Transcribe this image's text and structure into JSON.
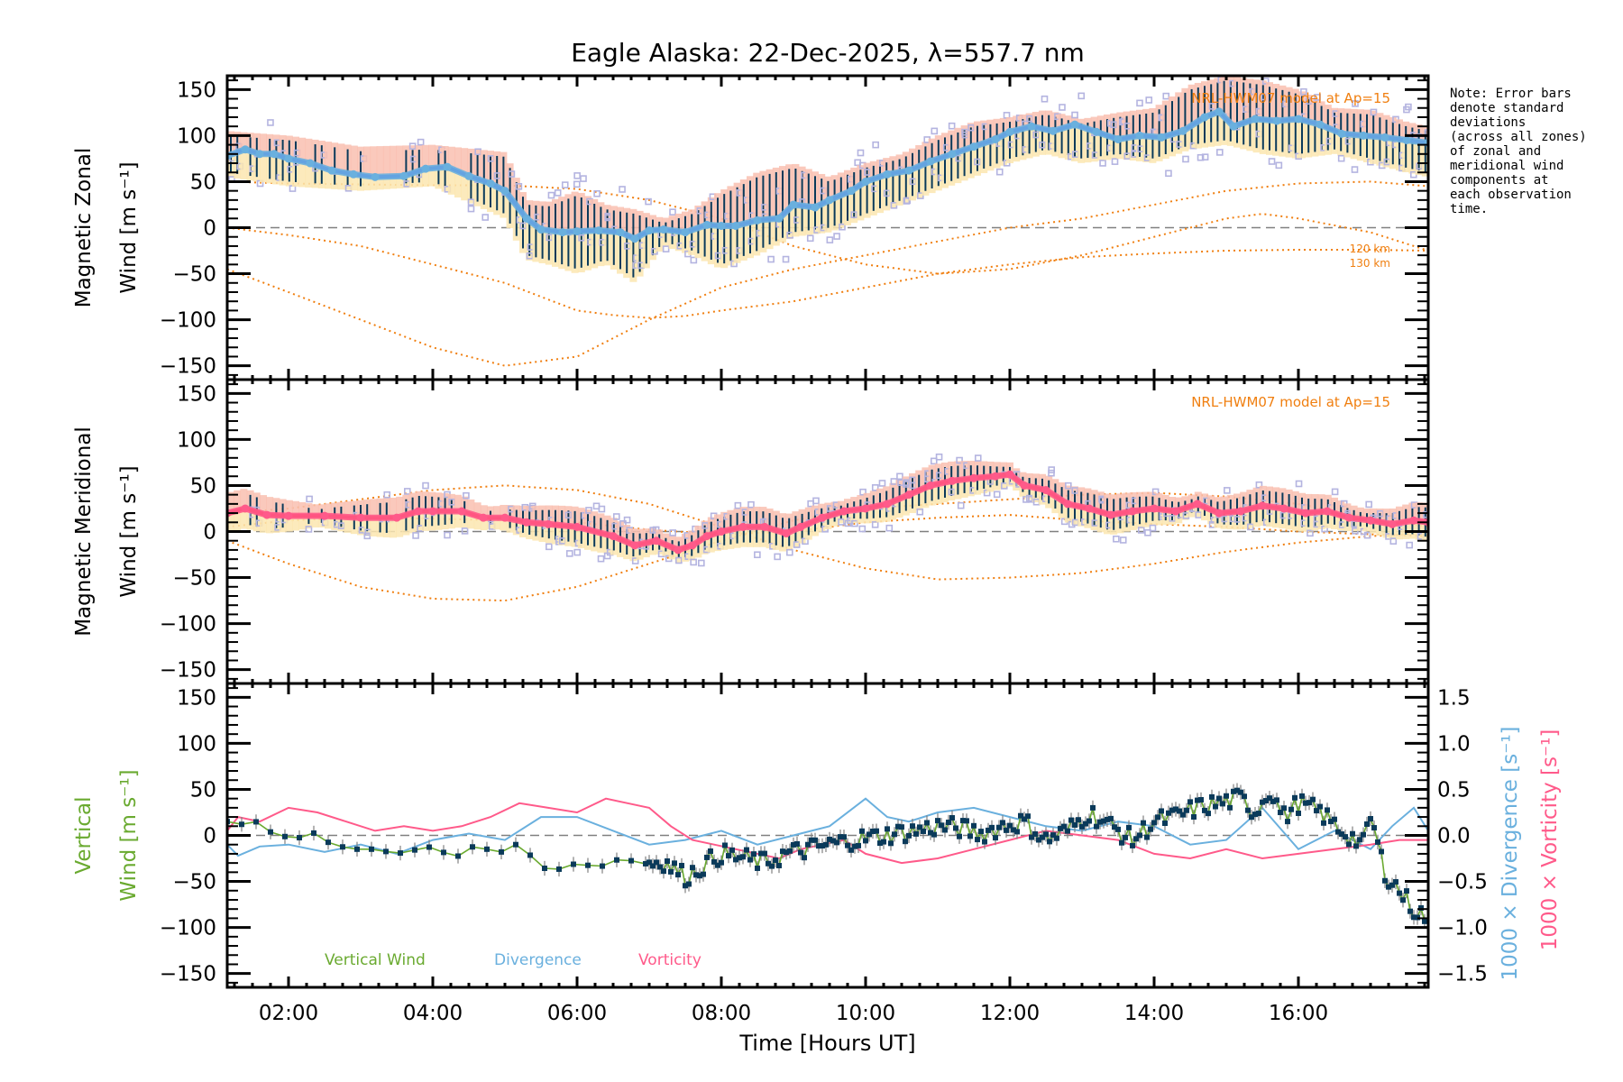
{
  "title": "Eagle Alaska: 22-Dec-2025, λ=557.7 nm",
  "note": "Note: Error bars\ndenote standard\ndeviations\n(across all zones)\nof zonal and\nmeridional wind\ncomponents at\neach observation\ntime.",
  "xlabel": "Time [Hours UT]",
  "colors": {
    "zonal_line": "#6ab0de",
    "zonal_line_dark": "#2a2aff",
    "meridional_line": "#ff5a8a",
    "meridional_line_dark": "#ff2a3a",
    "errorbar": "#0a3a5a",
    "hwm": "#f07f10",
    "scatter": "#b4b4e0",
    "band_pink": "#f9c0b0",
    "band_yellow": "#fbe6b0",
    "vertical": "#6aaa30",
    "divergence": "#6ab0de",
    "vorticity": "#ff5a8a",
    "zero_line": "#808080"
  },
  "chart_data": [
    {
      "type": "line",
      "panel": "zonal",
      "ylabel_line1": "Magnetic Zonal",
      "ylabel_line2": "Wind [m s⁻¹]",
      "xlim": [
        1.15,
        17.8
      ],
      "ylim": [
        -165,
        165
      ],
      "yticks": [
        150,
        100,
        50,
        0,
        -50,
        -100,
        -150
      ],
      "ytick_labels": [
        "150",
        "100",
        "50",
        "0",
        "−50",
        "−100",
        "−150"
      ],
      "model_label": "NRL-HWM07 model at Ap=15",
      "model_altitude_labels": [
        "120 km",
        "130 km"
      ],
      "series": [
        {
          "name": "Observed zonal wind",
          "x": [
            1.15,
            1.4,
            1.6,
            1.8,
            2.0,
            2.3,
            2.6,
            2.9,
            3.2,
            3.6,
            3.9,
            4.2,
            4.5,
            4.8,
            5.0,
            5.3,
            5.5,
            5.8,
            6.0,
            6.3,
            6.6,
            6.8,
            7.0,
            7.2,
            7.5,
            7.8,
            8.0,
            8.2,
            8.5,
            8.8,
            9.0,
            9.3,
            9.5,
            9.8,
            10.0,
            10.3,
            10.6,
            10.9,
            11.2,
            11.5,
            11.8,
            12.0,
            12.3,
            12.6,
            12.9,
            13.2,
            13.5,
            13.8,
            14.1,
            14.4,
            14.7,
            14.9,
            15.1,
            15.4,
            15.7,
            16.0,
            16.3,
            16.6,
            16.9,
            17.2,
            17.5,
            17.8
          ],
          "y": [
            78,
            85,
            80,
            80,
            75,
            70,
            62,
            58,
            55,
            56,
            64,
            66,
            56,
            48,
            40,
            10,
            -2,
            -5,
            -4,
            -3,
            -5,
            -12,
            -3,
            -2,
            -5,
            3,
            2,
            2,
            8,
            10,
            25,
            22,
            30,
            40,
            50,
            58,
            62,
            72,
            80,
            88,
            96,
            104,
            110,
            105,
            112,
            104,
            96,
            100,
            98,
            105,
            120,
            126,
            110,
            118,
            116,
            118,
            112,
            102,
            100,
            98,
            95,
            92
          ]
        },
        {
          "name": "Error std (upper)",
          "x": [
            1.15,
            2.0,
            3.0,
            4.0,
            5.0,
            5.3,
            5.6,
            6.0,
            6.4,
            6.8,
            7.2,
            7.6,
            8.0,
            8.5,
            9.0,
            9.5,
            10.0,
            10.5,
            11.0,
            11.5,
            12.0,
            12.5,
            13.0,
            13.5,
            14.0,
            14.5,
            15.0,
            15.5,
            16.0,
            16.5,
            17.0,
            17.5,
            17.8
          ],
          "y": [
            105,
            100,
            88,
            90,
            82,
            30,
            28,
            40,
            25,
            20,
            10,
            20,
            40,
            60,
            70,
            55,
            70,
            80,
            100,
            115,
            120,
            128,
            118,
            125,
            130,
            155,
            165,
            160,
            150,
            130,
            128,
            115,
            110
          ]
        },
        {
          "name": "Error std (lower)",
          "x": [
            1.15,
            2.0,
            3.0,
            4.0,
            5.0,
            5.3,
            5.6,
            6.0,
            6.4,
            6.8,
            7.2,
            7.6,
            8.0,
            8.5,
            9.0,
            9.5,
            10.0,
            10.5,
            11.0,
            11.5,
            12.0,
            12.5,
            13.0,
            13.5,
            14.0,
            14.5,
            15.0,
            15.5,
            16.0,
            16.5,
            17.0,
            17.5,
            17.8
          ],
          "y": [
            55,
            45,
            40,
            45,
            10,
            -35,
            -40,
            -50,
            -40,
            -60,
            -20,
            -30,
            -45,
            -30,
            -10,
            -5,
            10,
            25,
            40,
            55,
            70,
            80,
            70,
            75,
            70,
            85,
            90,
            80,
            75,
            80,
            70,
            60,
            55
          ]
        },
        {
          "name": "HWM07 120 km",
          "x": [
            1.15,
            2,
            3,
            4,
            5,
            5.5,
            6,
            6.5,
            7,
            7.5,
            8,
            9,
            10,
            11,
            12,
            13,
            14,
            15,
            16,
            17,
            17.8
          ],
          "y": [
            0,
            -8,
            -20,
            -40,
            -60,
            -75,
            -90,
            -95,
            -98,
            -96,
            -90,
            -80,
            -65,
            -50,
            -40,
            -32,
            -28,
            -25,
            -24,
            -24,
            -25
          ]
        },
        {
          "name": "HWM07 130 km",
          "x": [
            1.15,
            2,
            3,
            4,
            5,
            6,
            7,
            8,
            9,
            10,
            11,
            12,
            13,
            14,
            15,
            16,
            17,
            17.8
          ],
          "y": [
            -45,
            -70,
            -100,
            -130,
            -150,
            -140,
            -100,
            -65,
            -45,
            -30,
            -15,
            0,
            10,
            25,
            40,
            48,
            50,
            45
          ]
        },
        {
          "name": "HWM07 other",
          "x": [
            1.15,
            2,
            3,
            4,
            5,
            6,
            7,
            8,
            9,
            10,
            11,
            12,
            13,
            14,
            15,
            15.5,
            16,
            17,
            17.8
          ],
          "y": [
            50,
            48,
            47,
            46,
            46,
            42,
            30,
            10,
            -20,
            -40,
            -50,
            -45,
            -30,
            -10,
            10,
            15,
            10,
            -5,
            -25
          ]
        }
      ]
    },
    {
      "type": "line",
      "panel": "meridional",
      "ylabel_line1": "Magnetic Meridional",
      "ylabel_line2": "Wind [m s⁻¹]",
      "xlim": [
        1.15,
        17.8
      ],
      "ylim": [
        -165,
        165
      ],
      "yticks": [
        150,
        100,
        50,
        0,
        -50,
        -100,
        -150
      ],
      "ytick_labels": [
        "150",
        "100",
        "50",
        "0",
        "−50",
        "−100",
        "−150"
      ],
      "model_label": "NRL-HWM07 model at Ap=15",
      "series": [
        {
          "name": "Observed meridional wind",
          "x": [
            1.15,
            1.4,
            1.7,
            2.0,
            2.5,
            3.0,
            3.5,
            3.8,
            4.0,
            4.4,
            4.7,
            5.0,
            5.3,
            5.6,
            6.0,
            6.5,
            6.8,
            7.1,
            7.4,
            7.6,
            7.8,
            8.0,
            8.3,
            8.6,
            8.9,
            9.1,
            9.4,
            9.7,
            10.0,
            10.3,
            10.6,
            10.9,
            11.2,
            11.5,
            11.8,
            12.0,
            12.2,
            12.5,
            12.8,
            13.1,
            13.4,
            13.7,
            14.0,
            14.3,
            14.6,
            14.9,
            15.2,
            15.5,
            15.8,
            16.1,
            16.4,
            16.7,
            17.0,
            17.3,
            17.6,
            17.8
          ],
          "y": [
            20,
            25,
            18,
            17,
            17,
            15,
            15,
            22,
            22,
            22,
            15,
            15,
            10,
            8,
            5,
            -5,
            -15,
            -10,
            -20,
            -15,
            -5,
            0,
            5,
            5,
            -2,
            5,
            15,
            22,
            25,
            30,
            40,
            50,
            55,
            58,
            60,
            62,
            50,
            45,
            30,
            25,
            18,
            22,
            25,
            22,
            30,
            20,
            22,
            28,
            25,
            20,
            22,
            15,
            12,
            8,
            12,
            10
          ]
        },
        {
          "name": "HWM07 120 km",
          "x": [
            1.15,
            2,
            3,
            4,
            5,
            6,
            7,
            8,
            9,
            10,
            11,
            12,
            13,
            14,
            15,
            16,
            17,
            17.8
          ],
          "y": [
            5,
            12,
            15,
            14,
            12,
            10,
            2,
            -3,
            0,
            10,
            15,
            18,
            12,
            8,
            5,
            0,
            -3,
            -5
          ]
        },
        {
          "name": "HWM07 130 km",
          "x": [
            1.15,
            2,
            3,
            4,
            5,
            6,
            7,
            8,
            9,
            10,
            11,
            12,
            13,
            14,
            15,
            16,
            17,
            17.8
          ],
          "y": [
            -10,
            -35,
            -60,
            -73,
            -75,
            -60,
            -35,
            -10,
            12,
            25,
            30,
            35,
            40,
            42,
            38,
            30,
            15,
            5
          ]
        },
        {
          "name": "HWM07 other",
          "x": [
            1.15,
            2,
            3,
            4,
            5,
            6,
            7,
            8,
            9,
            10,
            11,
            12,
            13,
            14,
            15,
            16,
            17,
            17.8
          ],
          "y": [
            20,
            25,
            35,
            45,
            50,
            45,
            30,
            5,
            -20,
            -40,
            -52,
            -50,
            -45,
            -35,
            -22,
            -12,
            -5,
            -2
          ]
        }
      ]
    },
    {
      "type": "line",
      "panel": "vertical",
      "ylabel_line1": "Vertical",
      "ylabel_line2": "Wind [m s⁻¹]",
      "y2label_divergence": "1000 × Divergence [s⁻¹]",
      "y2label_vorticity": "1000 × Vorticity [s⁻¹]",
      "xlim": [
        1.15,
        17.8
      ],
      "ylim": [
        -165,
        165
      ],
      "y2lim": [
        -1.65,
        1.65
      ],
      "yticks": [
        150,
        100,
        50,
        0,
        -50,
        -100,
        -150
      ],
      "ytick_labels": [
        "150",
        "100",
        "50",
        "0",
        "−50",
        "−100",
        "−150"
      ],
      "y2ticks": [
        1.5,
        1.0,
        0.5,
        0.0,
        -0.5,
        -1.0,
        -1.5
      ],
      "y2tick_labels": [
        "1.5",
        "1.0",
        "0.5",
        "0.0",
        "−0.5",
        "−1.0",
        "−1.5"
      ],
      "xticks": [
        2,
        4,
        6,
        8,
        10,
        12,
        14,
        16
      ],
      "xtick_labels": [
        "02:00",
        "04:00",
        "06:00",
        "08:00",
        "10:00",
        "12:00",
        "14:00",
        "16:00"
      ],
      "legend": [
        "Vertical Wind",
        "Divergence",
        "Vorticity"
      ],
      "series": [
        {
          "name": "Vertical Wind",
          "x": [
            1.15,
            1.3,
            1.5,
            1.7,
            1.9,
            2.1,
            2.3,
            2.6,
            2.9,
            3.2,
            3.5,
            3.8,
            4.0,
            4.3,
            4.6,
            4.9,
            5.2,
            5.5,
            5.7,
            6.0,
            6.3,
            6.6,
            6.9,
            7.2,
            7.5,
            7.8,
            8.0,
            8.3,
            8.6,
            8.9,
            9.2,
            9.5,
            9.8,
            10.1,
            10.4,
            10.7,
            11.0,
            11.3,
            11.6,
            11.9,
            12.2,
            12.5,
            12.8,
            13.1,
            13.4,
            13.7,
            14.0,
            14.3,
            14.6,
            14.9,
            15.2,
            15.4,
            15.6,
            15.8,
            16.0,
            16.3,
            16.6,
            16.9,
            17.0,
            17.2,
            17.4,
            17.6,
            17.8
          ],
          "y": [
            15,
            10,
            18,
            5,
            0,
            -5,
            5,
            -10,
            -15,
            -15,
            -20,
            -15,
            -12,
            -25,
            -10,
            -20,
            -8,
            -35,
            -38,
            -30,
            -35,
            -25,
            -30,
            -28,
            -45,
            -30,
            -20,
            -25,
            -30,
            -20,
            -15,
            -10,
            -5,
            -2,
            2,
            5,
            10,
            8,
            2,
            10,
            15,
            -5,
            5,
            25,
            10,
            -5,
            15,
            20,
            30,
            35,
            40,
            25,
            50,
            20,
            35,
            25,
            5,
            -10,
            20,
            -40,
            -60,
            -80,
            -90
          ]
        },
        {
          "name": "Divergence",
          "x": [
            1.15,
            1.3,
            1.6,
            2.0,
            2.5,
            3.0,
            3.5,
            4.0,
            4.5,
            5.0,
            5.5,
            6.0,
            6.5,
            7.0,
            7.5,
            8.0,
            8.5,
            9.0,
            9.5,
            10.0,
            10.3,
            10.6,
            11.0,
            11.5,
            12.0,
            12.5,
            13.0,
            13.5,
            14.0,
            14.5,
            15.0,
            15.5,
            16.0,
            16.5,
            17.0,
            17.3,
            17.6,
            17.8
          ],
          "y": [
            -0.1,
            -0.22,
            -0.12,
            -0.1,
            -0.18,
            -0.1,
            -0.2,
            -0.05,
            0.02,
            -0.05,
            0.2,
            0.2,
            0.05,
            -0.1,
            -0.05,
            0.05,
            -0.1,
            0.0,
            0.1,
            0.4,
            0.2,
            0.15,
            0.25,
            0.3,
            0.2,
            0.1,
            0.05,
            0.15,
            0.1,
            -0.1,
            -0.05,
            0.3,
            -0.15,
            0.05,
            -0.15,
            0.1,
            0.3,
            0.05
          ]
        },
        {
          "name": "Vorticity",
          "x": [
            1.15,
            1.3,
            1.6,
            2.0,
            2.4,
            2.8,
            3.2,
            3.6,
            4.0,
            4.4,
            4.8,
            5.2,
            5.6,
            6.0,
            6.4,
            6.7,
            7.0,
            7.3,
            7.6,
            7.9,
            8.2,
            8.5,
            8.8,
            9.1,
            9.4,
            9.7,
            10.0,
            10.5,
            11.0,
            11.5,
            12.0,
            12.5,
            13.0,
            13.5,
            14.0,
            14.5,
            15.0,
            15.5,
            16.0,
            16.5,
            17.0,
            17.4,
            17.8
          ],
          "y": [
            0.05,
            0.2,
            0.15,
            0.3,
            0.25,
            0.15,
            0.05,
            0.1,
            0.05,
            0.1,
            0.2,
            0.35,
            0.3,
            0.25,
            0.4,
            0.35,
            0.3,
            0.1,
            -0.05,
            -0.1,
            -0.15,
            -0.2,
            -0.25,
            -0.15,
            -0.1,
            -0.05,
            -0.2,
            -0.3,
            -0.25,
            -0.15,
            -0.05,
            0.05,
            0.0,
            -0.05,
            -0.2,
            -0.25,
            -0.15,
            -0.25,
            -0.2,
            -0.15,
            -0.1,
            -0.05,
            -0.05
          ]
        }
      ]
    }
  ]
}
